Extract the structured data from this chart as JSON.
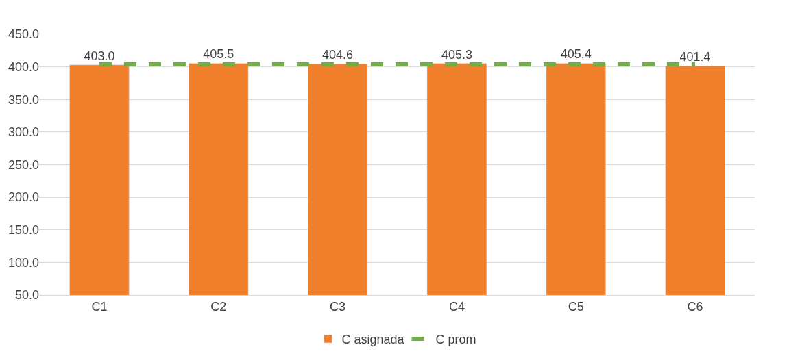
{
  "chart_data": {
    "type": "bar",
    "categories": [
      "C1",
      "C2",
      "C3",
      "C4",
      "C5",
      "C6"
    ],
    "series": [
      {
        "name": "C asignada",
        "color": "#f07f2c",
        "values": [
          403.0,
          405.5,
          404.6,
          405.3,
          405.4,
          401.4
        ],
        "value_labels": [
          "403.0",
          "405.5",
          "404.6",
          "405.3",
          "405.4",
          "401.4"
        ]
      },
      {
        "name": "C prom",
        "type": "line",
        "color": "#70ad47",
        "line_style": "dashed",
        "marker": "none",
        "values": [
          404,
          404,
          404,
          404,
          404,
          404
        ]
      }
    ],
    "ylim": [
      50,
      450
    ],
    "yticks": [
      {
        "value": 50,
        "label": "50.0"
      },
      {
        "value": 100,
        "label": "100.0"
      },
      {
        "value": 150,
        "label": "150.0"
      },
      {
        "value": 200,
        "label": "200.0"
      },
      {
        "value": 250,
        "label": "250.0"
      },
      {
        "value": 300,
        "label": "300.0"
      },
      {
        "value": 350,
        "label": "350.0"
      },
      {
        "value": 400,
        "label": "400.0"
      },
      {
        "value": 450,
        "label": "450.0"
      }
    ],
    "grid": "y",
    "legend": "bottom"
  }
}
